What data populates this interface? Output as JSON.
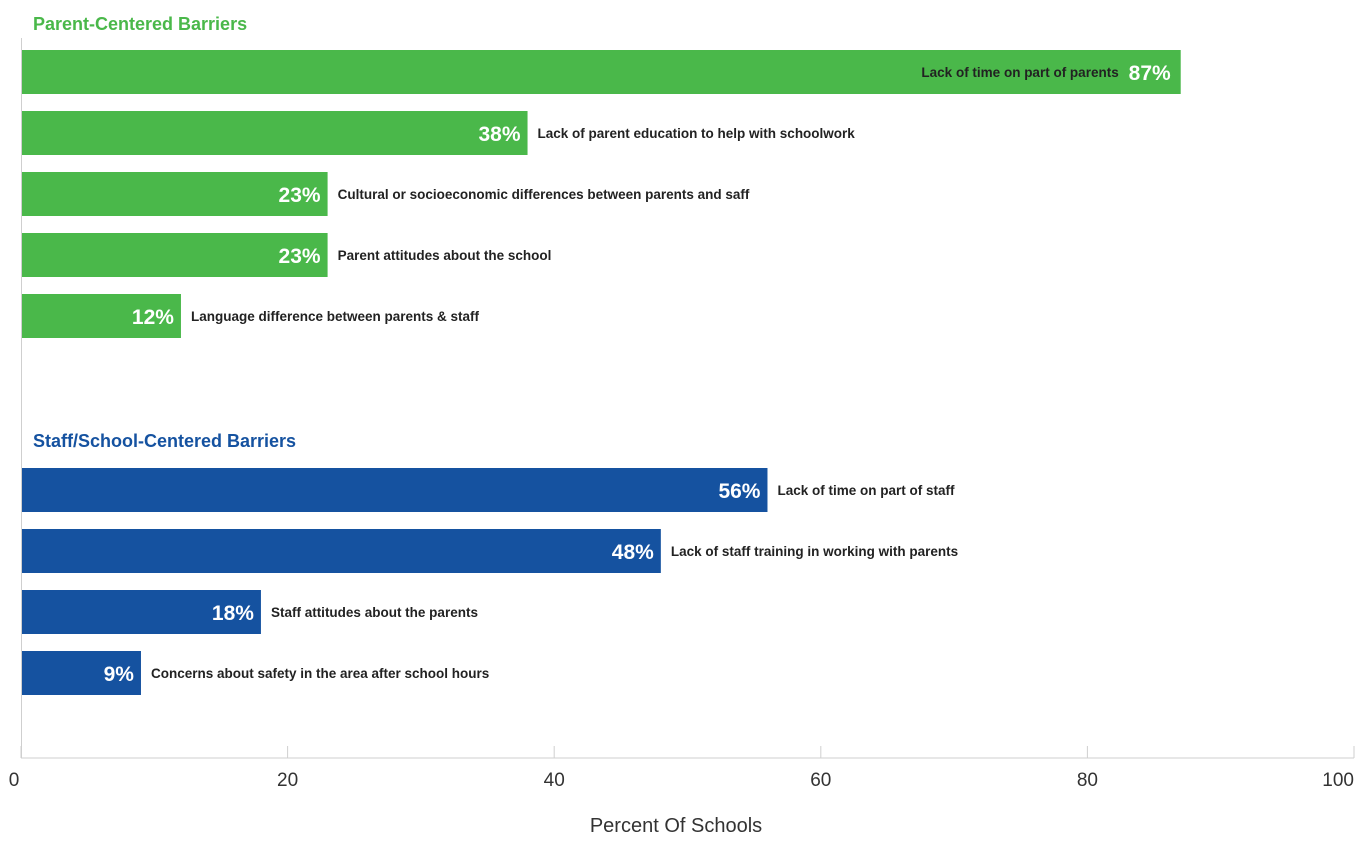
{
  "chart_data": {
    "type": "bar",
    "orientation": "horizontal",
    "xlabel": "Percent Of Schools",
    "xlim": [
      0,
      100
    ],
    "xticks": [
      "0",
      "20",
      "40",
      "60",
      "80",
      "100"
    ],
    "grid": false,
    "groups": [
      {
        "title": "Parent-Centered Barriers",
        "color": "#4ab84a",
        "bars": [
          {
            "label": "Lack of time on part of parents",
            "value": 87,
            "display": "87%"
          },
          {
            "label": "Lack of parent education to help with schoolwork",
            "value": 38,
            "display": "38%"
          },
          {
            "label": "Cultural or socioeconomic differences between parents and saff",
            "value": 23,
            "display": "23%"
          },
          {
            "label": "Parent attitudes about the school",
            "value": 23,
            "display": "23%"
          },
          {
            "label": "Language difference between parents & staff",
            "value": 12,
            "display": "12%"
          }
        ]
      },
      {
        "title": "Staff/School-Centered Barriers",
        "color": "#1552a0",
        "bars": [
          {
            "label": "Lack of time on part of staff",
            "value": 56,
            "display": "56%"
          },
          {
            "label": "Lack of staff training in working with parents",
            "value": 48,
            "display": "48%"
          },
          {
            "label": "Staff attitudes about the parents",
            "value": 18,
            "display": "18%"
          },
          {
            "label": "Concerns about safety in the area after school hours",
            "value": 9,
            "display": "9%"
          }
        ]
      }
    ]
  }
}
